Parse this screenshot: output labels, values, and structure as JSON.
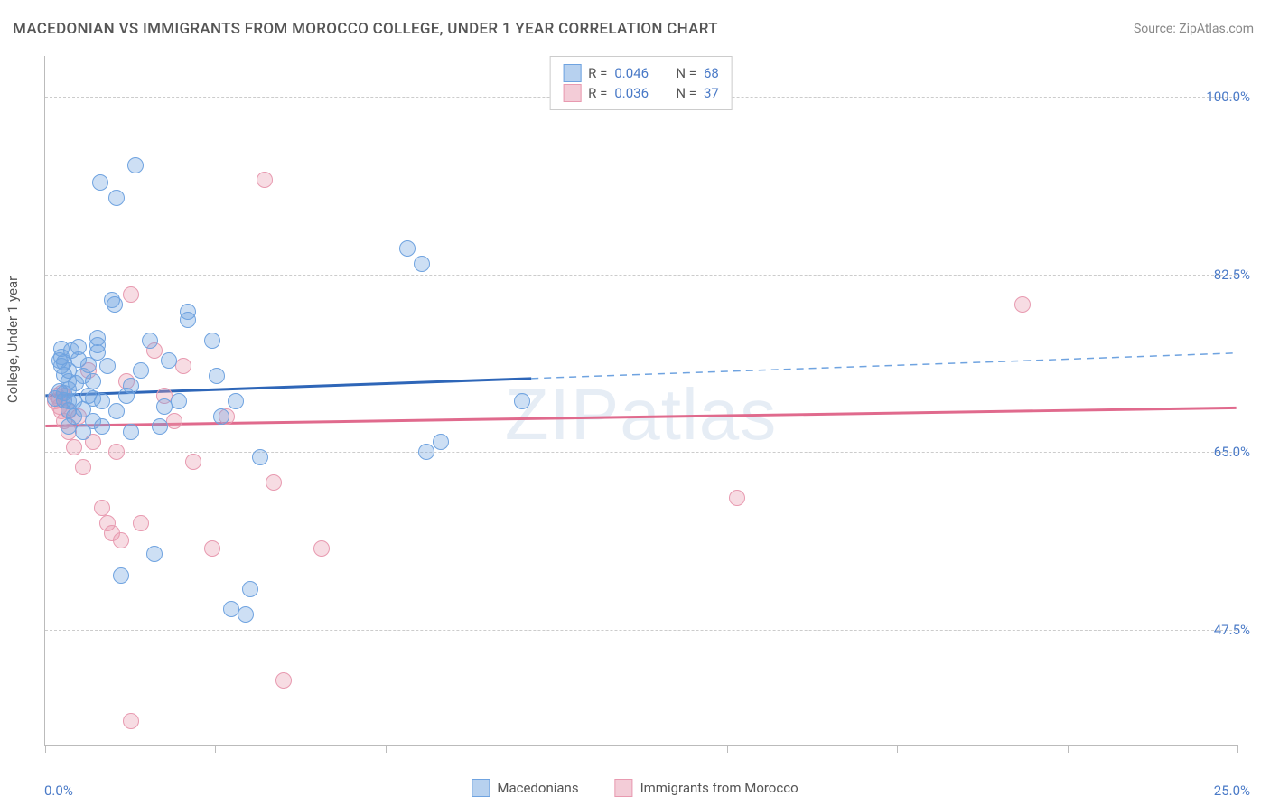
{
  "title": "MACEDONIAN VS IMMIGRANTS FROM MOROCCO COLLEGE, UNDER 1 YEAR CORRELATION CHART",
  "source": "Source: ZipAtlas.com",
  "watermark": "ZIPatlas",
  "ylabel": "College, Under 1 year",
  "chart": {
    "type": "scatter",
    "xlim": [
      0,
      25
    ],
    "ylim": [
      36,
      104
    ],
    "x_ticks": [
      0,
      25
    ],
    "x_tick_labels": [
      "0.0%",
      "25.0%"
    ],
    "x_minor_ticks": [
      3.57,
      7.14,
      10.71,
      14.29,
      17.86,
      21.43
    ],
    "y_ticks": [
      47.5,
      65.0,
      82.5,
      100.0
    ],
    "y_tick_labels": [
      "47.5%",
      "65.0%",
      "82.5%",
      "100.0%"
    ],
    "background_color": "#ffffff",
    "grid_color": "#cccccc",
    "axis_color": "#bbbbbb",
    "tick_label_color": "#4a7ac7",
    "label_fontsize": 15,
    "title_fontsize": 17,
    "marker_radius": 9,
    "marker_stroke_width": 1.2,
    "marker_fill_opacity": 0.35
  },
  "series": {
    "macedonians": {
      "label": "Macedonians",
      "color": "#6fa3e0",
      "fill": "rgba(111,163,224,0.35)",
      "stroke": "#6fa3e0",
      "R": "0.046",
      "N": "68",
      "regression": {
        "x1": 0,
        "y1": 70.5,
        "x2_solid": 10.2,
        "y2_solid": 72.2,
        "x2_dash": 25,
        "y2_dash": 74.7,
        "solid_color": "#2e66b8",
        "dash_color": "#6fa3e0",
        "solid_width": 3,
        "dash_width": 1.5
      },
      "points": [
        [
          0.2,
          70.3
        ],
        [
          0.3,
          71.0
        ],
        [
          0.3,
          74.0
        ],
        [
          0.35,
          75.2
        ],
        [
          0.35,
          74.4
        ],
        [
          0.35,
          73.5
        ],
        [
          0.4,
          70.1
        ],
        [
          0.4,
          70.8
        ],
        [
          0.4,
          72.6
        ],
        [
          0.4,
          73.8
        ],
        [
          0.5,
          67.5
        ],
        [
          0.5,
          69.1
        ],
        [
          0.5,
          70.0
        ],
        [
          0.5,
          71.2
        ],
        [
          0.5,
          72.0
        ],
        [
          0.5,
          73.0
        ],
        [
          0.55,
          75.0
        ],
        [
          0.6,
          68.5
        ],
        [
          0.6,
          70.0
        ],
        [
          0.65,
          71.8
        ],
        [
          0.7,
          74.1
        ],
        [
          0.7,
          75.3
        ],
        [
          0.8,
          67.0
        ],
        [
          0.8,
          69.2
        ],
        [
          0.8,
          72.5
        ],
        [
          0.9,
          70.5
        ],
        [
          0.9,
          73.6
        ],
        [
          1.0,
          68.0
        ],
        [
          1.0,
          70.3
        ],
        [
          1.0,
          72.0
        ],
        [
          1.1,
          74.8
        ],
        [
          1.1,
          75.5
        ],
        [
          1.1,
          76.2
        ],
        [
          1.15,
          91.5
        ],
        [
          1.2,
          67.5
        ],
        [
          1.2,
          70.0
        ],
        [
          1.3,
          73.5
        ],
        [
          1.4,
          80.0
        ],
        [
          1.45,
          79.5
        ],
        [
          1.5,
          90.0
        ],
        [
          1.5,
          69.0
        ],
        [
          1.6,
          52.8
        ],
        [
          1.7,
          70.5
        ],
        [
          1.8,
          67.0
        ],
        [
          1.8,
          71.5
        ],
        [
          1.9,
          93.2
        ],
        [
          2.0,
          73.0
        ],
        [
          2.2,
          76.0
        ],
        [
          2.3,
          55.0
        ],
        [
          2.4,
          67.5
        ],
        [
          2.5,
          69.5
        ],
        [
          2.6,
          74.0
        ],
        [
          2.8,
          70.0
        ],
        [
          3.0,
          78.0
        ],
        [
          3.0,
          78.8
        ],
        [
          3.5,
          76.0
        ],
        [
          3.6,
          72.5
        ],
        [
          3.7,
          68.5
        ],
        [
          3.9,
          49.5
        ],
        [
          4.0,
          70.0
        ],
        [
          4.2,
          49.0
        ],
        [
          4.3,
          51.5
        ],
        [
          4.5,
          64.5
        ],
        [
          7.6,
          85.0
        ],
        [
          7.9,
          83.5
        ],
        [
          8.0,
          65.0
        ],
        [
          8.3,
          66.0
        ],
        [
          10.0,
          70.0
        ]
      ]
    },
    "morocco": {
      "label": "Immigants from Morocco",
      "label_corrected": "Immigrants from Morocco",
      "color": "#e89ab0",
      "fill": "rgba(232,154,176,0.35)",
      "stroke": "#e89ab0",
      "R": "0.036",
      "N": "37",
      "regression": {
        "x1": 0,
        "y1": 67.5,
        "x2_solid": 25,
        "y2_solid": 69.3,
        "solid_color": "#e06a8d",
        "solid_width": 3
      },
      "points": [
        [
          0.2,
          70.0
        ],
        [
          0.25,
          70.5
        ],
        [
          0.3,
          69.5
        ],
        [
          0.3,
          70.2
        ],
        [
          0.35,
          69.0
        ],
        [
          0.35,
          70.8
        ],
        [
          0.4,
          68.0
        ],
        [
          0.4,
          70.5
        ],
        [
          0.5,
          67.0
        ],
        [
          0.5,
          69.0
        ],
        [
          0.6,
          65.5
        ],
        [
          0.7,
          68.5
        ],
        [
          0.8,
          63.5
        ],
        [
          0.9,
          73.0
        ],
        [
          1.0,
          66.0
        ],
        [
          1.2,
          59.5
        ],
        [
          1.3,
          58.0
        ],
        [
          1.4,
          57.0
        ],
        [
          1.5,
          65.0
        ],
        [
          1.6,
          56.3
        ],
        [
          1.7,
          72.0
        ],
        [
          1.8,
          80.5
        ],
        [
          1.8,
          38.5
        ],
        [
          2.0,
          58.0
        ],
        [
          2.3,
          75.0
        ],
        [
          2.5,
          70.5
        ],
        [
          2.7,
          68.0
        ],
        [
          2.9,
          73.5
        ],
        [
          3.1,
          64.0
        ],
        [
          3.5,
          55.5
        ],
        [
          3.8,
          68.5
        ],
        [
          4.6,
          91.8
        ],
        [
          4.8,
          62.0
        ],
        [
          5.0,
          42.5
        ],
        [
          5.8,
          55.5
        ],
        [
          14.5,
          60.5
        ],
        [
          20.5,
          79.5
        ]
      ]
    }
  },
  "legend_top": {
    "rows": [
      {
        "swatch_fill": "rgba(111,163,224,0.5)",
        "swatch_stroke": "#6fa3e0",
        "r_label": "R =",
        "r_val": "0.046",
        "n_label": "N =",
        "n_val": "68"
      },
      {
        "swatch_fill": "rgba(232,154,176,0.5)",
        "swatch_stroke": "#e89ab0",
        "r_label": "R =",
        "r_val": "0.036",
        "n_label": "N =",
        "n_val": "37"
      }
    ]
  },
  "legend_bottom": [
    {
      "swatch_fill": "rgba(111,163,224,0.5)",
      "swatch_stroke": "#6fa3e0",
      "label": "Macedonians"
    },
    {
      "swatch_fill": "rgba(232,154,176,0.5)",
      "swatch_stroke": "#e89ab0",
      "label": "Immigrants from Morocco"
    }
  ]
}
